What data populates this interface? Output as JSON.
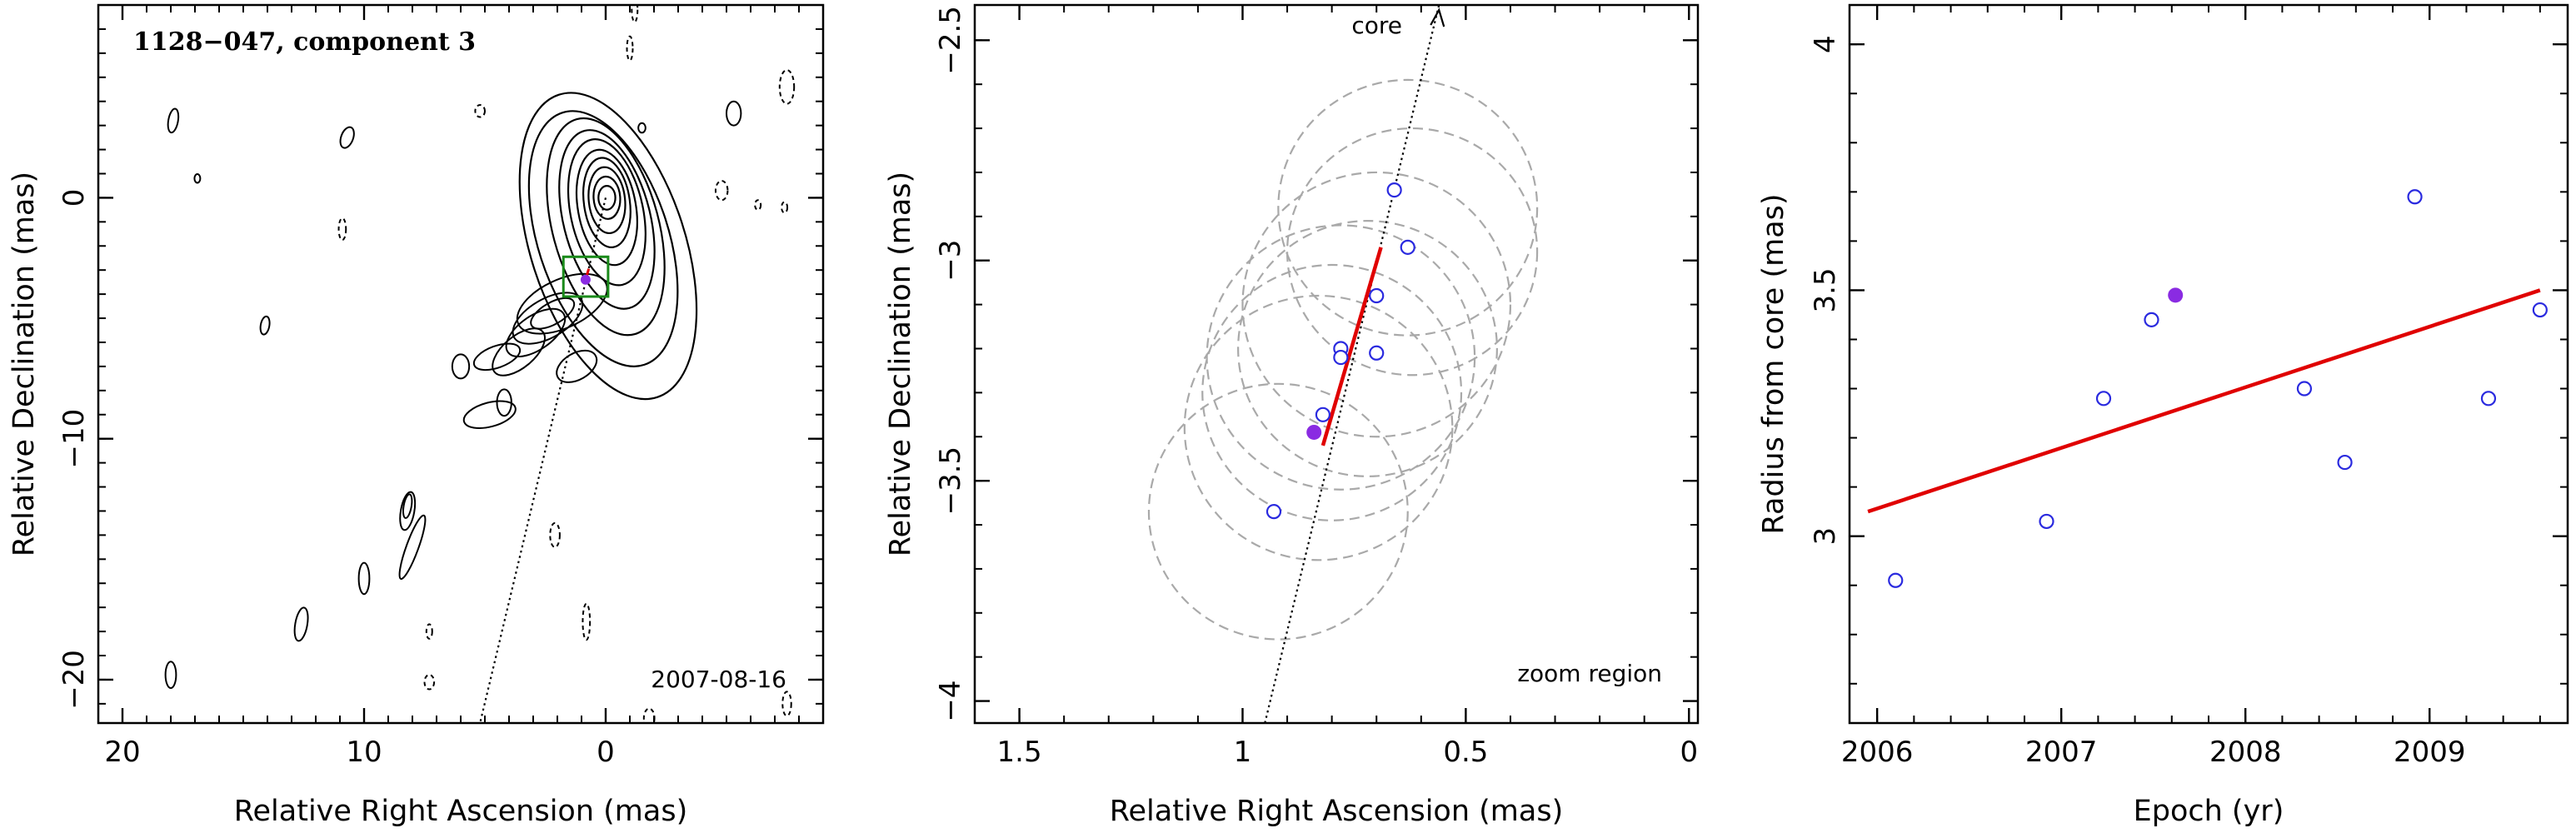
{
  "chart_data": [
    {
      "type": "contour",
      "title": "1128−047, component 3",
      "xlabel": "Relative Right Ascension (mas)",
      "ylabel": "Relative Declination (mas)",
      "xlim": [
        21,
        -9
      ],
      "ylim": [
        -21.8,
        8
      ],
      "xticks": [
        20,
        10,
        0
      ],
      "yticks": [
        0,
        -10,
        -20
      ],
      "xtick_labels": [
        "20",
        "10",
        "0"
      ],
      "ytick_labels": [
        "0",
        "−10",
        "−20"
      ],
      "annotations": [
        "2007-08-16"
      ],
      "core": {
        "x": 0,
        "y": 0
      },
      "component_position": {
        "x": 0.83,
        "y": -3.4
      },
      "zoom_box": {
        "x0": 1.75,
        "x1": -0.1,
        "y0": -2.45,
        "y1": -4.1
      },
      "direction_line": {
        "x0": 0,
        "y0": 0,
        "x1": 5.2,
        "y1": -21.8
      },
      "colors": {
        "contour": "#000000",
        "box": "#1a8a1a",
        "component": "#8a2be2",
        "fit": "#e00000"
      }
    },
    {
      "type": "scatter",
      "xlabel": "Relative Right Ascension (mas)",
      "ylabel": "Relative Declination (mas)",
      "xlim": [
        1.6,
        -0.02
      ],
      "ylim": [
        -4.05,
        -2.42
      ],
      "xticks": [
        1.5,
        1,
        0.5,
        0
      ],
      "yticks": [
        -2.5,
        -3,
        -3.5,
        -4
      ],
      "xtick_labels": [
        "1.5",
        "1",
        "0.5",
        "0"
      ],
      "ytick_labels": [
        "−2.5",
        "−3",
        "−3.5",
        "−4"
      ],
      "annotations": [
        "core",
        "zoom region"
      ],
      "points": [
        {
          "x": 0.93,
          "y": -3.57
        },
        {
          "x": 0.82,
          "y": -3.35
        },
        {
          "x": 0.78,
          "y": -3.2
        },
        {
          "x": 0.78,
          "y": -3.22
        },
        {
          "x": 0.7,
          "y": -3.21
        },
        {
          "x": 0.7,
          "y": -3.08
        },
        {
          "x": 0.63,
          "y": -2.97
        },
        {
          "x": 0.66,
          "y": -2.84
        }
      ],
      "highlight_point": {
        "x": 0.84,
        "y": -3.39
      },
      "fit_line": {
        "x0": 0.82,
        "y0": -3.42,
        "x1": 0.69,
        "y1": -2.97
      },
      "beam_circles": [
        {
          "x": 0.92,
          "y": -3.57,
          "r": 0.29
        },
        {
          "x": 0.83,
          "y": -3.38,
          "r": 0.3
        },
        {
          "x": 0.8,
          "y": -3.3,
          "r": 0.29
        },
        {
          "x": 0.78,
          "y": -3.22,
          "r": 0.3
        },
        {
          "x": 0.72,
          "y": -3.2,
          "r": 0.29
        },
        {
          "x": 0.7,
          "y": -3.1,
          "r": 0.3
        },
        {
          "x": 0.62,
          "y": -2.98,
          "r": 0.28
        },
        {
          "x": 0.63,
          "y": -2.88,
          "r": 0.29
        }
      ],
      "direction_line": {
        "x0": 0.95,
        "y0": -4.05,
        "x1": 0.56,
        "y1": -2.42
      },
      "colors": {
        "points": "#2a2adf",
        "highlight": "#8a2be2",
        "fit": "#e00000",
        "circles": "#a9a9a9"
      }
    },
    {
      "type": "scatter",
      "xlabel": "Epoch (yr)",
      "ylabel": "Radius from core (mas)",
      "xlim": [
        2005.85,
        2009.75
      ],
      "ylim": [
        2.62,
        4.08
      ],
      "xticks": [
        2006,
        2007,
        2008,
        2009
      ],
      "yticks": [
        3,
        3.5,
        4
      ],
      "xtick_labels": [
        "2006",
        "2007",
        "2008",
        "2009"
      ],
      "ytick_labels": [
        "3",
        "3.5",
        "4"
      ],
      "points": [
        {
          "x": 2006.1,
          "y": 2.91
        },
        {
          "x": 2006.92,
          "y": 3.03
        },
        {
          "x": 2007.23,
          "y": 3.28
        },
        {
          "x": 2007.49,
          "y": 3.44
        },
        {
          "x": 2008.32,
          "y": 3.3
        },
        {
          "x": 2008.54,
          "y": 3.15
        },
        {
          "x": 2008.92,
          "y": 3.69
        },
        {
          "x": 2009.32,
          "y": 3.28
        },
        {
          "x": 2009.6,
          "y": 3.46
        }
      ],
      "highlight_point": {
        "x": 2007.62,
        "y": 3.49
      },
      "fit_line": {
        "x0": 2005.95,
        "y0": 3.05,
        "x1": 2009.6,
        "y1": 3.5
      },
      "colors": {
        "points": "#2a2adf",
        "highlight": "#8a2be2",
        "fit": "#e00000"
      }
    }
  ]
}
